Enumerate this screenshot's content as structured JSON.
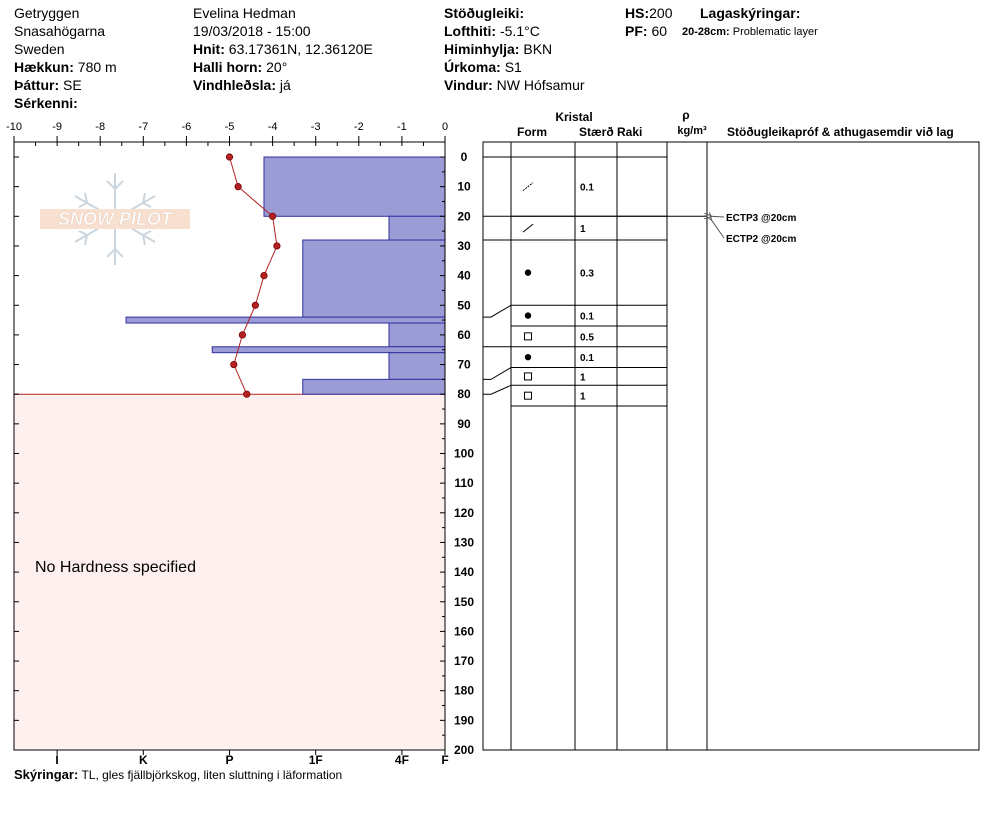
{
  "header": {
    "location": "Getryggen",
    "area": "Snasahögarna",
    "country": "Sweden",
    "elevation_label": "Hækkun:",
    "elevation": "780 m",
    "aspect_label": "Þáttur:",
    "aspect": "SE",
    "features_label": "Sérkenni:",
    "observer": "Evelina Hedman",
    "datetime": "19/03/2018 - 15:00",
    "coords_label": "Hnit:",
    "coords": "63.17361N, 12.36120E",
    "slope_label": "Halli horn:",
    "slope": "20°",
    "wind_loading_label": "Vindhleðsla:",
    "wind_loading": "já",
    "stability_label": "Stöðugleiki:",
    "airtemp_label": "Lofthiti:",
    "airtemp": "-5.1°C",
    "sky_label": "Himinhylja:",
    "sky": "BKN",
    "precip_label": "Úrkoma:",
    "precip": "S1",
    "wind_label": "Vindur:",
    "wind": "NW Hófsamur",
    "hs_label": "HS:",
    "hs": "200",
    "pf_label": "PF:",
    "pf": "60",
    "layer_notes_label": "Lagaskýringar:",
    "layer_note_range": "20-28cm:",
    "layer_note_text": "Problematic layer"
  },
  "legend": {
    "label": "Skýringar:",
    "text": "TL, gles fjällbjörkskog, liten sluttning i läformation"
  },
  "chart_data": {
    "type": "snow-profile",
    "temp_axis": {
      "ticks": [
        "-10",
        "-9",
        "-8",
        "-7",
        "-6",
        "-5",
        "-4",
        "-3",
        "-2",
        "-1",
        "0"
      ],
      "range": [
        -10,
        0
      ]
    },
    "depth_axis": {
      "range": [
        0,
        200
      ],
      "ticks": [
        0,
        10,
        20,
        30,
        40,
        50,
        60,
        70,
        80,
        90,
        100,
        110,
        120,
        130,
        140,
        150,
        160,
        170,
        180,
        190,
        200
      ]
    },
    "hardness_axis": {
      "ticks": [
        "I",
        "K",
        "P",
        "1F",
        "4F",
        "F"
      ],
      "values": [
        -9,
        -7,
        -5,
        -3,
        -1,
        0
      ]
    },
    "hardness_layers": [
      {
        "top": 0,
        "bottom": 20,
        "value": -4.2
      },
      {
        "top": 20,
        "bottom": 28,
        "value": -1.3
      },
      {
        "top": 28,
        "bottom": 54,
        "value": -3.3
      },
      {
        "top": 54,
        "bottom": 56,
        "value": -7.4
      },
      {
        "top": 56,
        "bottom": 64,
        "value": -1.3
      },
      {
        "top": 64,
        "bottom": 66,
        "value": -5.4
      },
      {
        "top": 66,
        "bottom": 75,
        "value": -1.3
      },
      {
        "top": 75,
        "bottom": 80,
        "value": -3.3
      }
    ],
    "temperature_profile": [
      {
        "depth": 0,
        "temp": -5.0
      },
      {
        "depth": 10,
        "temp": -4.8
      },
      {
        "depth": 20,
        "temp": -4.0
      },
      {
        "depth": 30,
        "temp": -3.9
      },
      {
        "depth": 40,
        "temp": -4.2
      },
      {
        "depth": 50,
        "temp": -4.4
      },
      {
        "depth": 60,
        "temp": -4.7
      },
      {
        "depth": 70,
        "temp": -4.9
      },
      {
        "depth": 80,
        "temp": -4.6
      }
    ],
    "unspecified_region": {
      "top": 80,
      "bottom": 200,
      "label": "No Hardness specified"
    },
    "layer_table": {
      "group_header": "Kristal",
      "columns": [
        "Form",
        "Stærð",
        "Raki",
        "ρ\nkg/m³",
        "Stöðugleikapróf & athugasemdir við lag"
      ],
      "density_label": "ρ",
      "density_unit": "kg/m³",
      "rows": [
        {
          "top": 0,
          "bottom": 20,
          "form": "decomposing",
          "size": "0.1"
        },
        {
          "top": 20,
          "bottom": 28,
          "form": "decomposing",
          "size": "1"
        },
        {
          "top": 28,
          "bottom": 50,
          "form": "rounded",
          "size": "0.3"
        },
        {
          "top": 50,
          "bottom": 57,
          "form": "rounded",
          "size": "0.1"
        },
        {
          "top": 57,
          "bottom": 64,
          "form": "faceted",
          "size": "0.5"
        },
        {
          "top": 64,
          "bottom": 71,
          "form": "rounded",
          "size": "0.1"
        },
        {
          "top": 71,
          "bottom": 77,
          "form": "faceted",
          "size": "1"
        },
        {
          "top": 77,
          "bottom": 84,
          "form": "faceted",
          "size": "1"
        }
      ],
      "stability_tests": [
        {
          "depth": 20,
          "label": "ECTP3 @20cm"
        },
        {
          "depth": 20,
          "label": "ECTP2 @20cm"
        }
      ]
    },
    "colors": {
      "hardness_fill": "#9b9bd6",
      "hardness_stroke": "#3030a0",
      "temp_line": "#b22222",
      "no_hardness_bg": "#fdf0ef",
      "no_hardness_border": "#b22222"
    }
  }
}
